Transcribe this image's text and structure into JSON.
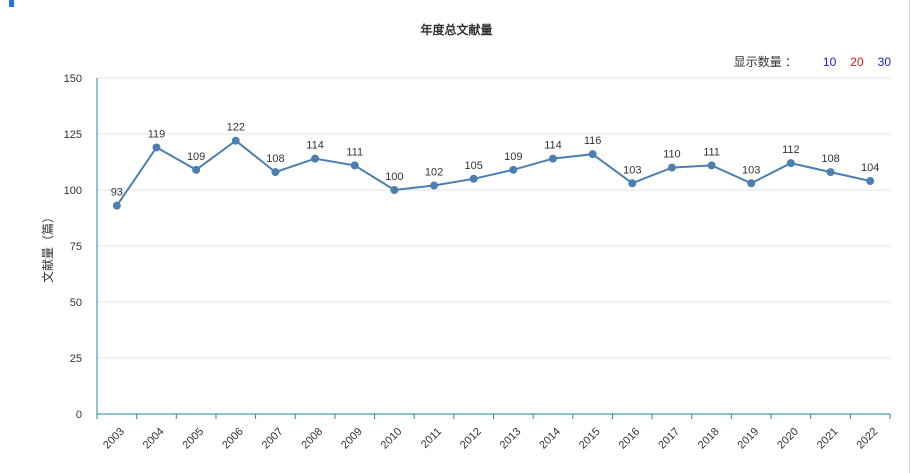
{
  "chart_data": {
    "type": "line",
    "title": "年度总文献量",
    "ylabel": "文献量（篇）",
    "xlabel": "",
    "categories": [
      "2003",
      "2004",
      "2005",
      "2006",
      "2007",
      "2008",
      "2009",
      "2010",
      "2011",
      "2012",
      "2013",
      "2014",
      "2015",
      "2016",
      "2017",
      "2018",
      "2019",
      "2020",
      "2021",
      "2022"
    ],
    "series": [
      {
        "values": [
          93,
          119,
          109,
          122,
          108,
          114,
          111,
          100,
          102,
          105,
          109,
          114,
          116,
          103,
          110,
          111,
          103,
          112,
          108,
          104
        ]
      }
    ],
    "ylim": [
      0,
      150
    ],
    "yticks": [
      0,
      25,
      50,
      75,
      100,
      125,
      150
    ],
    "grid": true,
    "line_color": "#4a7fb0",
    "axis_color": "#1f8a9e"
  },
  "count_selector": {
    "label": "显示数量 ：",
    "options": [
      {
        "text": "10",
        "color": "blue"
      },
      {
        "text": "20",
        "color": "red"
      },
      {
        "text": "30",
        "color": "blue"
      }
    ]
  }
}
